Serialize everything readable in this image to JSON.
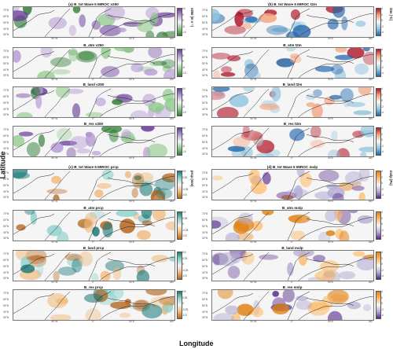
{
  "axes": {
    "y_title": "Latitude",
    "x_title": "Longitude"
  },
  "lat_ticks": [
    "70°N",
    "60°N",
    "50°N",
    "40°N",
    "30°N"
  ],
  "lon_ticks": [
    "90°W",
    "0°",
    "90°E",
    "180°"
  ],
  "columns": {
    "left": {
      "upper_group": {
        "colorbar_label": "v250 (m s⁻¹)",
        "colorbar_ticks": [
          "10",
          "5",
          "0",
          "-5",
          "-10"
        ],
        "colors": [
          "#6a3d9a",
          "#b69ad3",
          "#f5f5f5",
          "#8fca8a",
          "#2e7d32"
        ],
        "panels": [
          "(a) B_tot Wave 5 MIROC v250",
          "B_atm v250",
          "B_land v250",
          "B_res v250"
        ]
      },
      "lower_group": {
        "colorbar_label": "prcp (mm)",
        "colorbar_ticks": [
          "0.5",
          "0.25",
          "0",
          "-0.25",
          "-0.5"
        ],
        "colors": [
          "#1b7a78",
          "#8fd1cb",
          "#f5f5f5",
          "#f0b87a",
          "#b5651d"
        ],
        "panels": [
          "(c) B_tot Wave 5 MIROC prcp",
          "B_atm prcp",
          "B_land prcp",
          "B_res prcp"
        ]
      }
    },
    "right": {
      "upper_group": {
        "colorbar_label": "t2m (°C)",
        "colorbar_ticks": [
          "4",
          "2",
          "0",
          "-2",
          "-4"
        ],
        "colors": [
          "#b2182b",
          "#f4a582",
          "#f5f5f5",
          "#92c5de",
          "#2166ac"
        ],
        "panels": [
          "(b) B_tot Wave 5 MIROC t2m",
          "B_atm t2m",
          "B_land t2m",
          "B_res t2m"
        ]
      },
      "lower_group": {
        "colorbar_label": "mslp (Pa)",
        "colorbar_ticks": [
          "4",
          "2",
          "0",
          "-2",
          "-4"
        ],
        "colors": [
          "#e08214",
          "#fdb863",
          "#f5f5f5",
          "#b2abd2",
          "#542788"
        ],
        "panels": [
          "(d) B_tot Wave 5 MIROC mslp",
          "B_atm mslp",
          "B_land mslp",
          "B_res mslp"
        ]
      }
    }
  }
}
